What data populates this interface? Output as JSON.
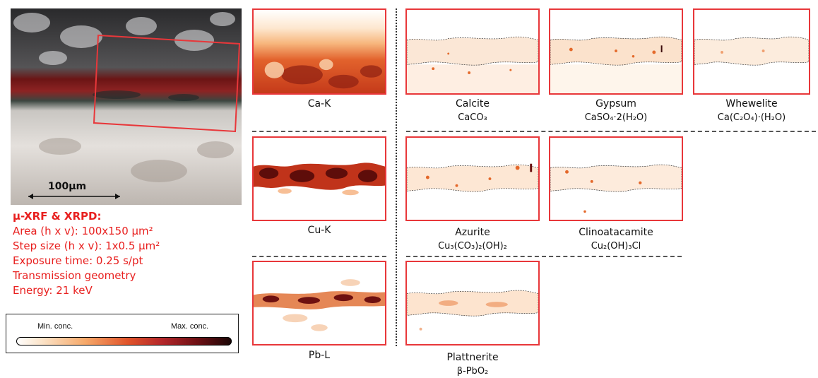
{
  "photo": {
    "scale_label": "100µm"
  },
  "info": {
    "title": "µ-XRF & XRPD:",
    "lines": [
      "Area (h x v): 100x150 µm²",
      "Step size (h x v): 1x0.5 µm²",
      "Exposure time: 0.25 s/pt",
      "Transmission geometry",
      "Energy: 21 keV"
    ]
  },
  "colorbar": {
    "min_label": "Min. conc.",
    "max_label": "Max. conc."
  },
  "elements": [
    {
      "name": "Ca-K"
    },
    {
      "name": "Cu-K"
    },
    {
      "name": "Pb-L"
    }
  ],
  "phases": [
    {
      "name": "Calcite",
      "formula": "CaCO₃"
    },
    {
      "name": "Gypsum",
      "formula": "CaSO₄·2(H₂O)"
    },
    {
      "name": "Whewelite",
      "formula": "Ca(C₂O₄)·(H₂O)"
    },
    {
      "name": "Azurite",
      "formula": "Cu₃(CO₃)₂(OH)₂"
    },
    {
      "name": "Clinoatacamite",
      "formula": "Cu₂(OH)₃Cl"
    },
    {
      "name": "Plattnerite",
      "formula": "β-PbO₂"
    }
  ],
  "colors": {
    "accent_red": "#e8373a",
    "text_red": "#e8201f"
  }
}
